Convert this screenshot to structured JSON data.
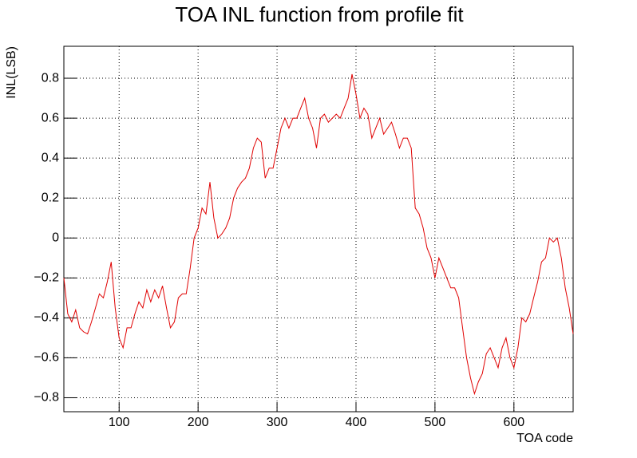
{
  "chart_data": {
    "type": "line",
    "title": "TOA INL function from profile fit",
    "x_label": "TOA code",
    "y_label": "INL(LSB)",
    "xlim": [
      30,
      675
    ],
    "ylim": [
      -0.87,
      0.96
    ],
    "xticks": [
      100,
      200,
      300,
      400,
      500,
      600
    ],
    "yticks": [
      {
        "value": -0.8,
        "label": "−0.8"
      },
      {
        "value": -0.6,
        "label": "−0.6"
      },
      {
        "value": -0.4,
        "label": "−0.4"
      },
      {
        "value": -0.2,
        "label": "−0.2"
      },
      0,
      0.2,
      0.4,
      0.6,
      0.8
    ],
    "grid": true,
    "series": [
      {
        "color": "#e00000",
        "x": [
          30,
          35,
          40,
          45,
          50,
          55,
          60,
          65,
          70,
          75,
          80,
          85,
          90,
          95,
          100,
          105,
          110,
          115,
          120,
          125,
          130,
          135,
          140,
          145,
          150,
          155,
          160,
          165,
          170,
          175,
          180,
          185,
          190,
          195,
          200,
          205,
          210,
          215,
          220,
          225,
          230,
          235,
          240,
          245,
          250,
          255,
          260,
          265,
          270,
          275,
          280,
          285,
          290,
          295,
          300,
          305,
          310,
          315,
          320,
          325,
          330,
          335,
          340,
          345,
          350,
          355,
          360,
          365,
          370,
          375,
          380,
          385,
          390,
          395,
          400,
          405,
          410,
          415,
          420,
          425,
          430,
          435,
          440,
          445,
          450,
          455,
          460,
          465,
          470,
          475,
          480,
          485,
          490,
          495,
          500,
          505,
          510,
          515,
          520,
          525,
          530,
          535,
          540,
          545,
          550,
          555,
          560,
          565,
          570,
          575,
          580,
          585,
          590,
          595,
          600,
          605,
          610,
          615,
          620,
          625,
          630,
          635,
          640,
          645,
          650,
          655,
          660,
          665,
          670,
          675
        ],
        "values": [
          -0.2,
          -0.38,
          -0.42,
          -0.36,
          -0.45,
          -0.47,
          -0.48,
          -0.42,
          -0.35,
          -0.28,
          -0.3,
          -0.22,
          -0.12,
          -0.35,
          -0.5,
          -0.55,
          -0.45,
          -0.45,
          -0.38,
          -0.32,
          -0.35,
          -0.26,
          -0.32,
          -0.26,
          -0.3,
          -0.24,
          -0.35,
          -0.45,
          -0.42,
          -0.3,
          -0.28,
          -0.28,
          -0.15,
          0.0,
          0.05,
          0.15,
          0.12,
          0.28,
          0.1,
          0.0,
          0.02,
          0.05,
          0.1,
          0.2,
          0.25,
          0.28,
          0.3,
          0.35,
          0.45,
          0.5,
          0.48,
          0.3,
          0.35,
          0.35,
          0.45,
          0.55,
          0.6,
          0.55,
          0.6,
          0.6,
          0.65,
          0.7,
          0.6,
          0.55,
          0.45,
          0.6,
          0.62,
          0.58,
          0.6,
          0.62,
          0.6,
          0.65,
          0.7,
          0.82,
          0.72,
          0.6,
          0.65,
          0.62,
          0.5,
          0.55,
          0.6,
          0.52,
          0.55,
          0.58,
          0.52,
          0.45,
          0.5,
          0.5,
          0.45,
          0.15,
          0.12,
          0.05,
          -0.05,
          -0.1,
          -0.2,
          -0.1,
          -0.15,
          -0.2,
          -0.25,
          -0.25,
          -0.3,
          -0.45,
          -0.6,
          -0.7,
          -0.78,
          -0.72,
          -0.68,
          -0.58,
          -0.55,
          -0.6,
          -0.65,
          -0.55,
          -0.5,
          -0.6,
          -0.65,
          -0.55,
          -0.4,
          -0.42,
          -0.38,
          -0.3,
          -0.22,
          -0.12,
          -0.1,
          0.0,
          -0.02,
          0.0,
          -0.1,
          -0.25,
          -0.35,
          -0.48
        ]
      }
    ]
  }
}
